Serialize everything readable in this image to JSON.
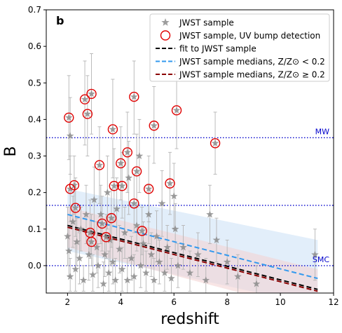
{
  "chart_data": {
    "type": "scatter",
    "panel_label": "b",
    "xlabel": "redshift",
    "ylabel": "B",
    "xlim": [
      1.2,
      12
    ],
    "ylim": [
      -0.075,
      0.7
    ],
    "x_ticks": [
      2,
      4,
      6,
      8,
      10,
      12
    ],
    "y_ticks": [
      0.0,
      0.1,
      0.2,
      0.3,
      0.4,
      0.5,
      0.6,
      0.7
    ],
    "grid": false,
    "legend_position": "top-right",
    "legend": [
      {
        "label": "JWST sample",
        "marker": "star"
      },
      {
        "label": "JWST sample, UV bump detection",
        "marker": "open-circle"
      },
      {
        "label": "fit to JWST sample",
        "marker": "dashed-line"
      },
      {
        "label": "JWST sample medians, Z/Z⊙ < 0.2",
        "marker": "dashed-line"
      },
      {
        "label": "JWST sample medians, Z/Z⊙ ≥ 0.2",
        "marker": "dashed-line"
      }
    ],
    "reference_lines": [
      {
        "label": "MW",
        "y": 0.35,
        "color": "#0000cc"
      },
      {
        "label": "",
        "y": 0.165,
        "color": "#0000cc"
      },
      {
        "label": "SMC",
        "y": 0.0,
        "color": "#0000cc"
      }
    ],
    "fit_lines": [
      {
        "x": [
          2.0,
          11.4
        ],
        "y": [
          0.11,
          -0.065
        ],
        "color": "#000000"
      },
      {
        "x": [
          2.0,
          11.4
        ],
        "y": [
          0.14,
          -0.035
        ],
        "color": "#3399ee",
        "band": [
          [
            0.21,
            0.07
          ],
          [
            0.04,
            -0.11
          ]
        ],
        "band_color": "#cfe3f7"
      },
      {
        "x": [
          2.0,
          11.4
        ],
        "y": [
          0.105,
          -0.07
        ],
        "color": "#8b0000",
        "band": [
          [
            0.16,
            -0.01
          ],
          [
            0.05,
            -0.13
          ]
        ],
        "band_color": "#f3d3d3"
      }
    ],
    "series": [
      {
        "name": "JWST sample, UV bump detection",
        "points": [
          {
            "x": 2.05,
            "y": 0.405,
            "ylo": 0.29,
            "yhi": 0.52
          },
          {
            "x": 2.1,
            "y": 0.21,
            "ylo": 0.12,
            "yhi": 0.3
          },
          {
            "x": 2.25,
            "y": 0.22,
            "ylo": 0.14,
            "yhi": 0.3
          },
          {
            "x": 2.3,
            "y": 0.158,
            "ylo": 0.08,
            "yhi": 0.24
          },
          {
            "x": 2.65,
            "y": 0.455,
            "ylo": 0.33,
            "yhi": 0.56
          },
          {
            "x": 2.75,
            "y": 0.415,
            "ylo": 0.3,
            "yhi": 0.52
          },
          {
            "x": 2.85,
            "y": 0.09,
            "ylo": 0.02,
            "yhi": 0.18
          },
          {
            "x": 2.9,
            "y": 0.065,
            "ylo": 0.0,
            "yhi": 0.14
          },
          {
            "x": 2.9,
            "y": 0.47,
            "ylo": 0.36,
            "yhi": 0.58
          },
          {
            "x": 3.2,
            "y": 0.275,
            "ylo": 0.17,
            "yhi": 0.38
          },
          {
            "x": 3.3,
            "y": 0.115,
            "ylo": 0.04,
            "yhi": 0.19
          },
          {
            "x": 3.45,
            "y": 0.078,
            "ylo": 0.02,
            "yhi": 0.14
          },
          {
            "x": 3.65,
            "y": 0.13,
            "ylo": 0.05,
            "yhi": 0.21
          },
          {
            "x": 3.7,
            "y": 0.373,
            "ylo": 0.24,
            "yhi": 0.51
          },
          {
            "x": 3.75,
            "y": 0.218,
            "ylo": 0.12,
            "yhi": 0.32
          },
          {
            "x": 4.0,
            "y": 0.28,
            "ylo": 0.18,
            "yhi": 0.38
          },
          {
            "x": 4.05,
            "y": 0.218,
            "ylo": 0.13,
            "yhi": 0.31
          },
          {
            "x": 4.25,
            "y": 0.31,
            "ylo": 0.2,
            "yhi": 0.42
          },
          {
            "x": 4.5,
            "y": 0.462,
            "ylo": 0.36,
            "yhi": 0.56
          },
          {
            "x": 4.5,
            "y": 0.17,
            "ylo": 0.09,
            "yhi": 0.25
          },
          {
            "x": 4.6,
            "y": 0.258,
            "ylo": 0.16,
            "yhi": 0.36
          },
          {
            "x": 4.8,
            "y": 0.095,
            "ylo": 0.03,
            "yhi": 0.16
          },
          {
            "x": 5.05,
            "y": 0.21,
            "ylo": 0.12,
            "yhi": 0.3
          },
          {
            "x": 5.25,
            "y": 0.383,
            "ylo": 0.28,
            "yhi": 0.49
          },
          {
            "x": 5.85,
            "y": 0.225,
            "ylo": 0.14,
            "yhi": 0.31
          },
          {
            "x": 6.1,
            "y": 0.425,
            "ylo": 0.32,
            "yhi": 0.53
          },
          {
            "x": 7.55,
            "y": 0.335,
            "ylo": 0.25,
            "yhi": 0.42
          }
        ]
      },
      {
        "name": "JWST sample",
        "points": [
          {
            "x": 2.0,
            "y": 0.08,
            "ylo": 0.0,
            "yhi": 0.16
          },
          {
            "x": 2.05,
            "y": 0.04,
            "ylo": -0.03,
            "yhi": 0.11
          },
          {
            "x": 2.1,
            "y": -0.03,
            "ylo": -0.07,
            "yhi": 0.02
          },
          {
            "x": 2.1,
            "y": 0.355,
            "ylo": 0.25,
            "yhi": 0.46
          },
          {
            "x": 2.2,
            "y": 0.12,
            "ylo": 0.05,
            "yhi": 0.19
          },
          {
            "x": 2.3,
            "y": -0.01,
            "ylo": -0.07,
            "yhi": 0.06
          },
          {
            "x": 2.35,
            "y": 0.065,
            "ylo": 0.0,
            "yhi": 0.13
          },
          {
            "x": 2.45,
            "y": 0.02,
            "ylo": -0.05,
            "yhi": 0.09
          },
          {
            "x": 2.5,
            "y": 0.1,
            "ylo": 0.04,
            "yhi": 0.16
          },
          {
            "x": 2.6,
            "y": -0.04,
            "ylo": -0.07,
            "yhi": 0.0
          },
          {
            "x": 2.7,
            "y": 0.14,
            "ylo": 0.06,
            "yhi": 0.22
          },
          {
            "x": 2.8,
            "y": 0.03,
            "ylo": -0.04,
            "yhi": 0.1
          },
          {
            "x": 2.95,
            "y": -0.025,
            "ylo": -0.07,
            "yhi": 0.03
          },
          {
            "x": 3.0,
            "y": 0.18,
            "ylo": 0.09,
            "yhi": 0.27
          },
          {
            "x": 3.1,
            "y": 0.05,
            "ylo": -0.02,
            "yhi": 0.12
          },
          {
            "x": 3.15,
            "y": 0.0,
            "ylo": -0.06,
            "yhi": 0.06
          },
          {
            "x": 3.25,
            "y": 0.14,
            "ylo": 0.06,
            "yhi": 0.22
          },
          {
            "x": 3.35,
            "y": -0.05,
            "ylo": -0.075,
            "yhi": 0.01
          },
          {
            "x": 3.4,
            "y": 0.03,
            "ylo": -0.03,
            "yhi": 0.09
          },
          {
            "x": 3.5,
            "y": 0.2,
            "ylo": 0.1,
            "yhi": 0.3
          },
          {
            "x": 3.55,
            "y": -0.02,
            "ylo": -0.07,
            "yhi": 0.04
          },
          {
            "x": 3.6,
            "y": 0.07,
            "ylo": 0.0,
            "yhi": 0.14
          },
          {
            "x": 3.7,
            "y": 0.01,
            "ylo": -0.05,
            "yhi": 0.07
          },
          {
            "x": 3.8,
            "y": -0.04,
            "ylo": -0.075,
            "yhi": 0.02
          },
          {
            "x": 3.85,
            "y": 0.155,
            "ylo": 0.07,
            "yhi": 0.24
          },
          {
            "x": 3.95,
            "y": 0.045,
            "ylo": -0.02,
            "yhi": 0.11
          },
          {
            "x": 4.05,
            "y": -0.01,
            "ylo": -0.07,
            "yhi": 0.05
          },
          {
            "x": 4.15,
            "y": 0.09,
            "ylo": 0.02,
            "yhi": 0.16
          },
          {
            "x": 4.25,
            "y": -0.04,
            "ylo": -0.075,
            "yhi": 0.02
          },
          {
            "x": 4.3,
            "y": 0.24,
            "ylo": 0.14,
            "yhi": 0.34
          },
          {
            "x": 4.4,
            "y": 0.02,
            "ylo": -0.04,
            "yhi": 0.08
          },
          {
            "x": 4.5,
            "y": -0.03,
            "ylo": -0.075,
            "yhi": 0.03
          },
          {
            "x": 4.6,
            "y": 0.11,
            "ylo": 0.04,
            "yhi": 0.18
          },
          {
            "x": 4.7,
            "y": 0.3,
            "ylo": 0.2,
            "yhi": 0.4
          },
          {
            "x": 4.75,
            "y": 0.0,
            "ylo": -0.06,
            "yhi": 0.06
          },
          {
            "x": 4.85,
            "y": 0.06,
            "ylo": 0.0,
            "yhi": 0.12
          },
          {
            "x": 4.95,
            "y": -0.02,
            "ylo": -0.07,
            "yhi": 0.04
          },
          {
            "x": 5.05,
            "y": 0.14,
            "ylo": 0.06,
            "yhi": 0.22
          },
          {
            "x": 5.15,
            "y": 0.03,
            "ylo": -0.03,
            "yhi": 0.09
          },
          {
            "x": 5.25,
            "y": -0.04,
            "ylo": -0.075,
            "yhi": 0.02
          },
          {
            "x": 5.35,
            "y": 0.08,
            "ylo": 0.01,
            "yhi": 0.15
          },
          {
            "x": 5.45,
            "y": 0.01,
            "ylo": -0.05,
            "yhi": 0.07
          },
          {
            "x": 5.55,
            "y": 0.17,
            "ylo": 0.08,
            "yhi": 0.26
          },
          {
            "x": 5.65,
            "y": -0.02,
            "ylo": -0.07,
            "yhi": 0.04
          },
          {
            "x": 5.75,
            "y": 0.05,
            "ylo": -0.01,
            "yhi": 0.11
          },
          {
            "x": 5.9,
            "y": -0.035,
            "ylo": -0.075,
            "yhi": 0.02
          },
          {
            "x": 6.0,
            "y": 0.19,
            "ylo": 0.1,
            "yhi": 0.28
          },
          {
            "x": 6.05,
            "y": 0.1,
            "ylo": 0.03,
            "yhi": 0.17
          },
          {
            "x": 6.15,
            "y": 0.0,
            "ylo": -0.06,
            "yhi": 0.06
          },
          {
            "x": 6.35,
            "y": 0.05,
            "ylo": -0.01,
            "yhi": 0.11
          },
          {
            "x": 6.6,
            "y": -0.02,
            "ylo": -0.07,
            "yhi": 0.04
          },
          {
            "x": 6.9,
            "y": 0.03,
            "ylo": -0.03,
            "yhi": 0.09
          },
          {
            "x": 7.2,
            "y": -0.04,
            "ylo": -0.075,
            "yhi": 0.02
          },
          {
            "x": 7.35,
            "y": 0.14,
            "ylo": 0.06,
            "yhi": 0.22
          },
          {
            "x": 7.6,
            "y": 0.07,
            "ylo": 0.01,
            "yhi": 0.13
          },
          {
            "x": 8.0,
            "y": 0.01,
            "ylo": -0.05,
            "yhi": 0.07
          },
          {
            "x": 8.4,
            "y": -0.03,
            "ylo": -0.075,
            "yhi": 0.03
          },
          {
            "x": 9.1,
            "y": -0.05,
            "ylo": -0.075,
            "yhi": 0.0
          },
          {
            "x": 11.3,
            "y": 0.03,
            "ylo": -0.04,
            "yhi": 0.1
          }
        ]
      }
    ]
  }
}
